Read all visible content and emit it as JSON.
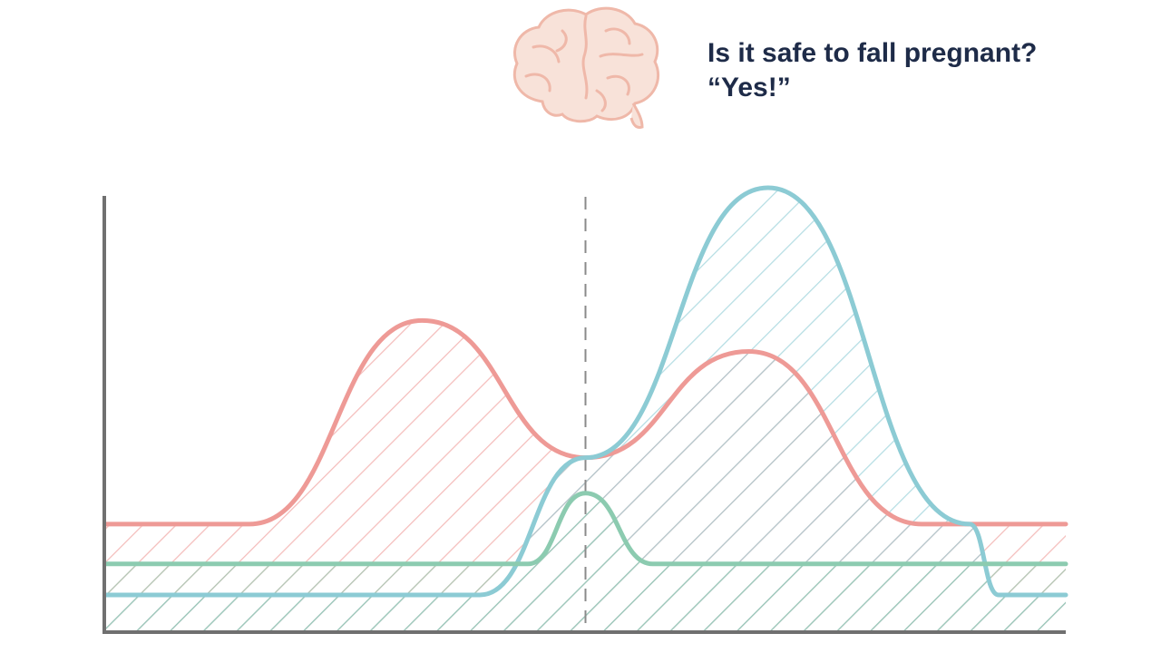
{
  "header": {
    "question": "Is it safe to fall pregnant?",
    "answer": "“Yes!”",
    "icon": "brain-icon"
  },
  "chart_data": {
    "type": "area",
    "title": "",
    "xlabel": "",
    "ylabel": "",
    "xlim": [
      0,
      100
    ],
    "ylim": [
      0,
      100
    ],
    "grid": false,
    "marker_x": 50,
    "series": [
      {
        "color": "#ee9a96",
        "x": [
          0,
          15,
          33,
          50,
          67,
          85,
          100
        ],
        "y": [
          24,
          24,
          70,
          39,
          63,
          24,
          24
        ]
      },
      {
        "color": "#8ccbd4",
        "x": [
          0,
          39,
          50,
          69,
          90,
          93,
          100
        ],
        "y": [
          8,
          8,
          39,
          100,
          24,
          8,
          8
        ]
      },
      {
        "color": "#8ccbb0",
        "x": [
          0,
          44,
          50,
          57,
          100
        ],
        "y": [
          15,
          15,
          31,
          15,
          15
        ]
      }
    ]
  }
}
